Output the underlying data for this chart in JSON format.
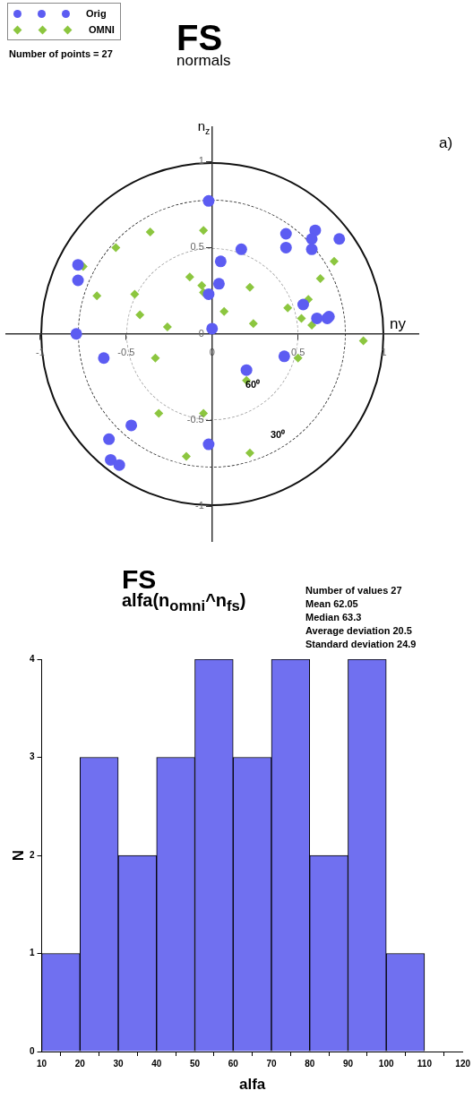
{
  "chart_data": [
    {
      "type": "scatter",
      "title": "FS",
      "subtitle": "normals",
      "xlabel": "ny",
      "ylabel": "n$_{z}$",
      "legend": "top left",
      "xlim": [
        -1.2,
        1.2
      ],
      "ylim": [
        -1.2,
        1.2
      ],
      "xticks": [
        -1,
        -0.5,
        0,
        0.5,
        1
      ],
      "yticks": [
        -1,
        -0.5,
        0,
        0.5,
        1
      ],
      "series": [
        {
          "name": "Orig",
          "color": "#5c5cf2",
          "marker": "circle",
          "x": [
            -0.02,
            0.05,
            0.04,
            -0.02,
            0.0,
            -0.78,
            -0.78,
            -0.79,
            0.17,
            0.43,
            0.43,
            0.6,
            0.58,
            0.58,
            0.74,
            0.53,
            0.61,
            0.67,
            0.68,
            -0.63,
            -0.47,
            -0.6,
            -0.59,
            -0.54,
            -0.02,
            0.2,
            0.42
          ],
          "values": [
            0.77,
            0.42,
            0.29,
            0.23,
            0.03,
            0.4,
            0.31,
            0.0,
            0.49,
            0.58,
            0.5,
            0.6,
            0.55,
            0.49,
            0.55,
            0.17,
            0.09,
            0.09,
            0.1,
            -0.14,
            -0.53,
            -0.61,
            -0.73,
            -0.76,
            -0.64,
            -0.21,
            -0.13
          ]
        },
        {
          "name": "OMNI",
          "color": "#8cc63f",
          "marker": "diamond",
          "x": [
            -0.05,
            -0.36,
            -0.56,
            -0.75,
            -0.67,
            -0.45,
            -0.13,
            -0.06,
            -0.05,
            -0.42,
            -0.26,
            0.07,
            0.22,
            0.24,
            0.44,
            0.52,
            0.58,
            0.56,
            0.63,
            0.71,
            0.88,
            -0.33,
            -0.31,
            -0.05,
            -0.15,
            0.2,
            0.5,
            0.22
          ],
          "values": [
            0.6,
            0.59,
            0.5,
            0.39,
            0.22,
            0.23,
            0.33,
            0.28,
            0.24,
            0.11,
            0.04,
            0.13,
            0.27,
            0.06,
            0.15,
            0.09,
            0.05,
            0.2,
            0.32,
            0.42,
            -0.04,
            -0.14,
            -0.46,
            -0.46,
            -0.71,
            -0.27,
            -0.14,
            -0.69
          ]
        }
      ],
      "annotations": [
        "Number of  points  = 27",
        "a)",
        "60⁰",
        "30⁰"
      ]
    },
    {
      "type": "histogram",
      "title": "FS",
      "subtitle": "alfa(n$_{omni}$^n$_{fs}$)",
      "xlabel": "alfa",
      "ylabel": "N",
      "color": "#7070f0",
      "bins": [
        10,
        20,
        30,
        40,
        50,
        60,
        70,
        80,
        90,
        100,
        110
      ],
      "values": [
        1,
        3,
        2,
        3,
        4,
        3,
        4,
        2,
        4,
        1
      ],
      "xlim": [
        10,
        120
      ],
      "xticks": [
        10,
        20,
        30,
        40,
        50,
        60,
        70,
        80,
        90,
        100,
        110,
        120
      ],
      "ylim": [
        0,
        4
      ],
      "yticks": [
        0,
        1,
        2,
        3,
        4
      ],
      "annotations": [
        "Number of values 27",
        "Mean 62.05",
        "Median 63.3",
        "Average deviation 20.5",
        "Standard deviation 24.9"
      ]
    }
  ]
}
